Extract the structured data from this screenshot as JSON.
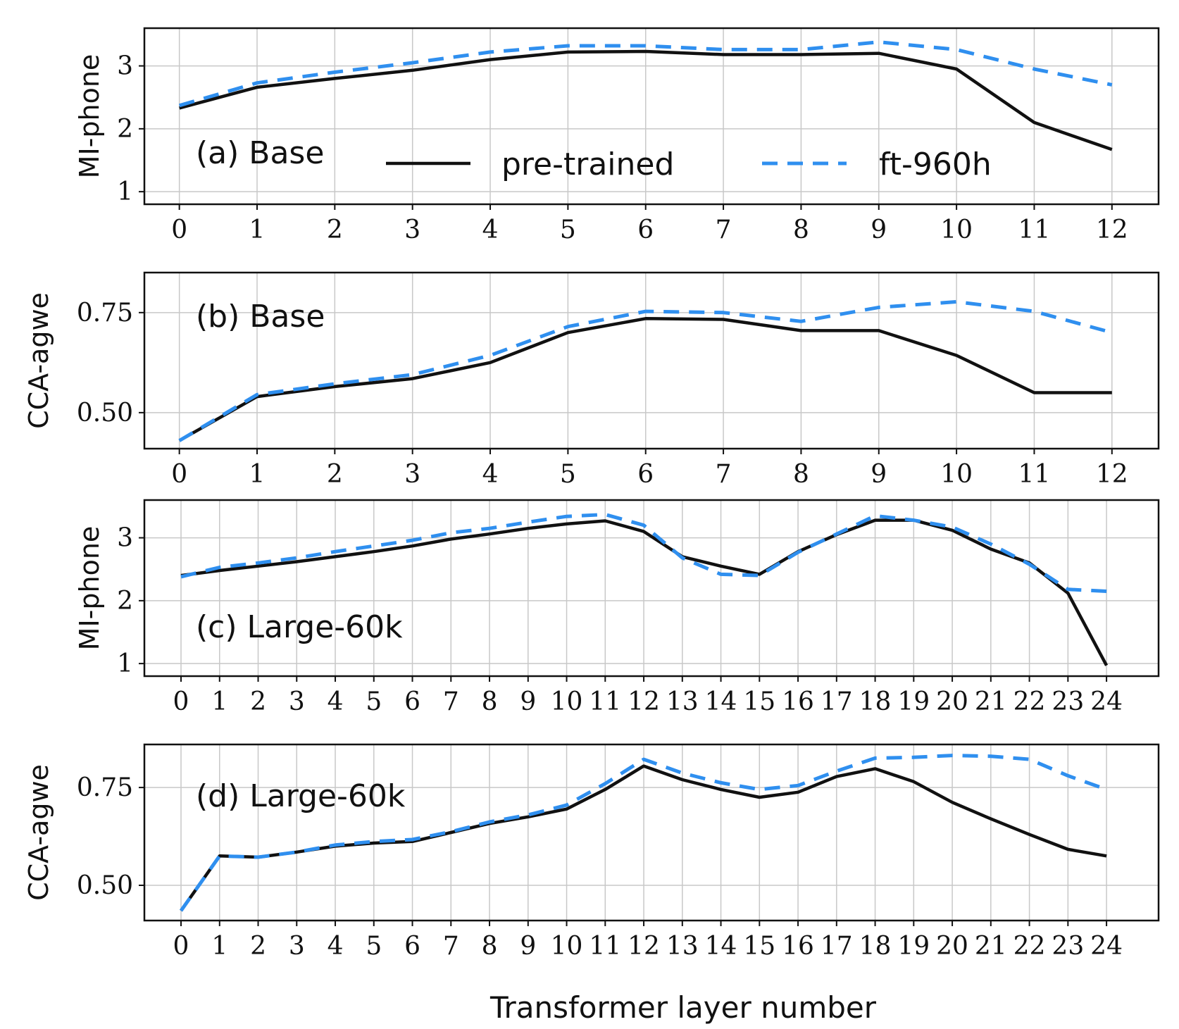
{
  "figure": {
    "xlabel": "Transformer layer number",
    "legend": [
      {
        "name": "pre-trained",
        "color": "#111111",
        "dash": "solid"
      },
      {
        "name": "ft-960h",
        "color": "#2f8fef",
        "dash": "dashed"
      }
    ]
  },
  "chart_data": [
    {
      "type": "line",
      "panel_label": "(a) Base",
      "ylabel": "MI-phone",
      "x": [
        0,
        1,
        2,
        3,
        4,
        5,
        6,
        7,
        8,
        9,
        10,
        11,
        12
      ],
      "xlim": [
        -0.45,
        12.6
      ],
      "ylim": [
        0.8,
        3.6
      ],
      "yticks": [
        1,
        2,
        3
      ],
      "ytick_labels": [
        "1",
        "2",
        "3"
      ],
      "show_legend": true,
      "series": [
        {
          "name": "pre-trained",
          "values": [
            2.33,
            2.66,
            2.8,
            2.93,
            3.1,
            3.22,
            3.23,
            3.18,
            3.18,
            3.2,
            2.95,
            2.1,
            1.67
          ]
        },
        {
          "name": "ft-960h",
          "values": [
            2.37,
            2.73,
            2.9,
            3.05,
            3.22,
            3.32,
            3.32,
            3.26,
            3.26,
            3.38,
            3.26,
            2.95,
            2.7
          ]
        }
      ]
    },
    {
      "type": "line",
      "panel_label": "(b) Base",
      "ylabel": "CCA-agwe",
      "x": [
        0,
        1,
        2,
        3,
        4,
        5,
        6,
        7,
        8,
        9,
        10,
        11,
        12
      ],
      "xlim": [
        -0.45,
        12.6
      ],
      "ylim": [
        0.41,
        0.85
      ],
      "yticks": [
        0.5,
        0.75
      ],
      "ytick_labels": [
        "0.50",
        "0.75"
      ],
      "show_legend": false,
      "series": [
        {
          "name": "pre-trained",
          "values": [
            0.43,
            0.54,
            0.565,
            0.585,
            0.625,
            0.7,
            0.735,
            0.733,
            0.705,
            0.705,
            0.643,
            0.55,
            0.55
          ]
        },
        {
          "name": "ft-960h",
          "values": [
            0.43,
            0.545,
            0.572,
            0.595,
            0.643,
            0.715,
            0.753,
            0.75,
            0.728,
            0.763,
            0.777,
            0.753,
            0.7
          ]
        }
      ]
    },
    {
      "type": "line",
      "panel_label": "(c) Large-60k",
      "ylabel": "MI-phone",
      "x": [
        0,
        1,
        2,
        3,
        4,
        5,
        6,
        7,
        8,
        9,
        10,
        11,
        12,
        13,
        14,
        15,
        16,
        17,
        18,
        19,
        20,
        21,
        22,
        23,
        24
      ],
      "xlim": [
        -0.95,
        25.35
      ],
      "ylim": [
        0.8,
        3.6
      ],
      "yticks": [
        1,
        2,
        3
      ],
      "ytick_labels": [
        "1",
        "2",
        "3"
      ],
      "show_legend": false,
      "series": [
        {
          "name": "pre-trained",
          "values": [
            2.4,
            2.48,
            2.55,
            2.62,
            2.7,
            2.78,
            2.87,
            2.98,
            3.06,
            3.15,
            3.22,
            3.27,
            3.1,
            2.7,
            2.55,
            2.42,
            2.78,
            3.05,
            3.28,
            3.28,
            3.12,
            2.82,
            2.6,
            2.12,
            0.97
          ]
        },
        {
          "name": "ft-960h",
          "values": [
            2.38,
            2.53,
            2.6,
            2.68,
            2.78,
            2.87,
            2.96,
            3.08,
            3.15,
            3.25,
            3.34,
            3.37,
            3.2,
            2.68,
            2.42,
            2.4,
            2.77,
            3.06,
            3.35,
            3.28,
            3.17,
            2.9,
            2.58,
            2.18,
            2.15
          ]
        }
      ]
    },
    {
      "type": "line",
      "panel_label": "(d) Large-60k",
      "ylabel": "CCA-agwe",
      "x": [
        0,
        1,
        2,
        3,
        4,
        5,
        6,
        7,
        8,
        9,
        10,
        11,
        12,
        13,
        14,
        15,
        16,
        17,
        18,
        19,
        20,
        21,
        22,
        23,
        24
      ],
      "xlim": [
        -0.95,
        25.35
      ],
      "ylim": [
        0.41,
        0.86
      ],
      "yticks": [
        0.5,
        0.75
      ],
      "ytick_labels": [
        "0.50",
        "0.75"
      ],
      "show_legend": false,
      "series": [
        {
          "name": "pre-trained",
          "values": [
            0.435,
            0.575,
            0.572,
            0.585,
            0.6,
            0.608,
            0.612,
            0.635,
            0.658,
            0.675,
            0.695,
            0.745,
            0.805,
            0.77,
            0.745,
            0.725,
            0.738,
            0.778,
            0.798,
            0.765,
            0.712,
            0.67,
            0.63,
            0.592,
            0.575
          ]
        },
        {
          "name": "ft-960h",
          "values": [
            0.435,
            0.575,
            0.572,
            0.585,
            0.603,
            0.612,
            0.617,
            0.637,
            0.662,
            0.68,
            0.705,
            0.76,
            0.822,
            0.787,
            0.762,
            0.745,
            0.755,
            0.792,
            0.825,
            0.827,
            0.832,
            0.83,
            0.822,
            0.78,
            0.745
          ]
        }
      ]
    }
  ]
}
